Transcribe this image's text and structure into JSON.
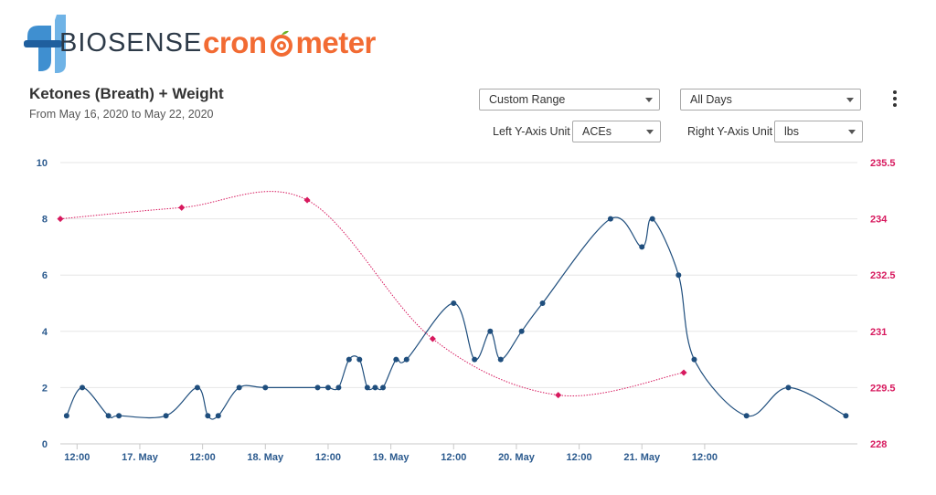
{
  "header": {
    "logos": {
      "biosense": "BIOSENSE",
      "cronometer_prefix": "cron",
      "cronometer_suffix": "meter"
    },
    "title": "Ketones (Breath) + Weight",
    "subtitle": "From May 16, 2020 to May 22, 2020"
  },
  "controls": {
    "range": {
      "value": "Custom Range"
    },
    "days": {
      "value": "All Days"
    },
    "left_unit": {
      "label": "Left Y-Axis Unit",
      "value": "ACEs"
    },
    "right_unit": {
      "label": "Right Y-Axis Unit",
      "value": "lbs"
    }
  },
  "colors": {
    "ketone": "#1f4e7d",
    "weight": "#d7195e",
    "grid": "#e6e6e6",
    "cron_orange": "#f26b33",
    "biosense_blue": "#3f8fd0"
  },
  "chart_data": {
    "type": "line",
    "x_range": [
      "2020-05-16 08:48",
      "2020-05-22 17:12"
    ],
    "x_ticks": [
      "12:00",
      "17. May",
      "12:00",
      "18. May",
      "12:00",
      "19. May",
      "12:00",
      "20. May",
      "12:00",
      "21. May",
      "12:00"
    ],
    "x_tick_times": [
      "2020-05-16 12:00",
      "2020-05-17 00:00",
      "2020-05-17 12:00",
      "2020-05-18 00:00",
      "2020-05-18 12:00",
      "2020-05-19 00:00",
      "2020-05-19 12:00",
      "2020-05-20 00:00",
      "2020-05-20 12:00",
      "2020-05-21 00:00",
      "2020-05-21 12:00"
    ],
    "y_left": {
      "ticks": [
        "0",
        "2",
        "4",
        "6",
        "8",
        "10"
      ],
      "range": [
        0,
        10
      ]
    },
    "y_right": {
      "ticks": [
        "228",
        "229.5",
        "231",
        "232.5",
        "234",
        "235.5"
      ],
      "range": [
        228,
        235.5
      ]
    },
    "series": [
      {
        "axis": "left",
        "x": [
          "2020-05-16 10:00",
          "2020-05-16 13:00",
          "2020-05-16 18:00",
          "2020-05-16 20:00",
          "2020-05-17 05:00",
          "2020-05-17 11:00",
          "2020-05-17 13:00",
          "2020-05-17 15:00",
          "2020-05-17 19:00",
          "2020-05-18 00:00",
          "2020-05-18 10:00",
          "2020-05-18 12:00",
          "2020-05-18 14:00",
          "2020-05-18 16:00",
          "2020-05-18 18:00",
          "2020-05-18 19:30",
          "2020-05-18 21:00",
          "2020-05-18 22:30",
          "2020-05-19 01:00",
          "2020-05-19 03:00",
          "2020-05-19 12:00",
          "2020-05-19 16:00",
          "2020-05-19 19:00",
          "2020-05-19 21:00",
          "2020-05-20 01:00",
          "2020-05-20 05:00",
          "2020-05-20 18:00",
          "2020-05-21 00:00",
          "2020-05-21 02:00",
          "2020-05-21 07:00",
          "2020-05-21 10:00",
          "2020-05-21 20:00",
          "2020-05-22 04:00",
          "2020-05-22 15:00"
        ],
        "values": [
          1,
          2,
          1,
          1,
          1,
          2,
          1,
          1,
          2,
          2,
          2,
          2,
          2,
          3,
          3,
          2,
          2,
          2,
          3,
          3,
          5,
          3,
          4,
          3,
          4,
          5,
          8,
          7,
          8,
          6,
          3,
          1,
          2,
          1
        ]
      },
      {
        "axis": "right",
        "x": [
          "2020-05-16 08:48",
          "2020-05-17 08:00",
          "2020-05-18 08:00",
          "2020-05-19 08:00",
          "2020-05-20 08:00",
          "2020-05-21 08:00"
        ],
        "values": [
          234.0,
          234.3,
          234.5,
          230.8,
          229.3,
          229.9
        ]
      }
    ]
  }
}
